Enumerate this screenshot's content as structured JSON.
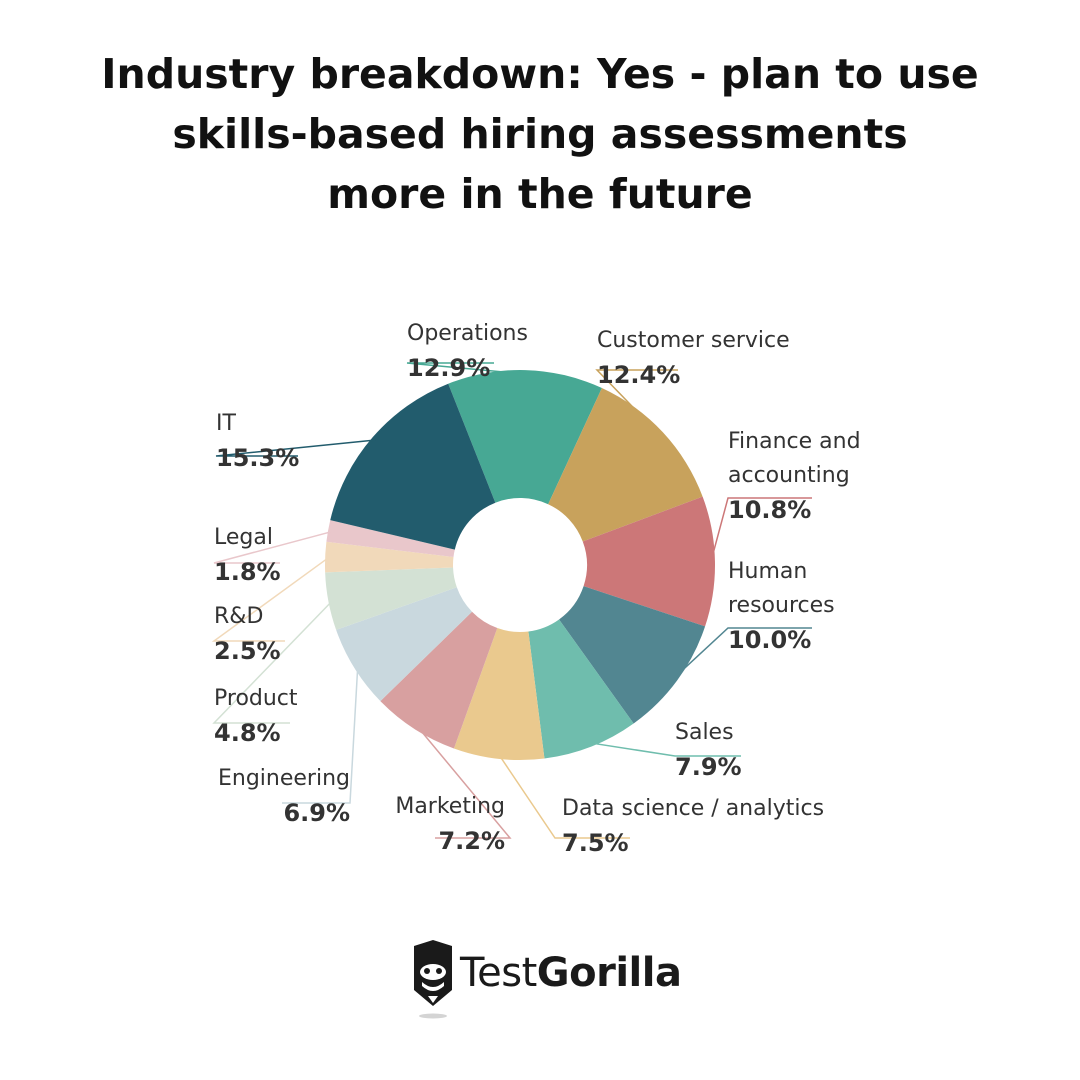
{
  "title_lines": [
    "Industry breakdown: Yes - plan to use",
    "skills-based hiring assessments",
    "more in the future"
  ],
  "chart_data": {
    "type": "pie",
    "variant": "donut",
    "title": "Industry breakdown: Yes - plan to use skills-based hiring assessments more in the future",
    "unit": "%",
    "slices": [
      {
        "label": "Operations",
        "value": 12.9,
        "display": "12.9%",
        "color": "#47A894"
      },
      {
        "label": "Customer service",
        "value": 12.4,
        "display": "12.4%",
        "color": "#C8A25C"
      },
      {
        "label": "Finance and accounting",
        "label_lines": [
          "Finance and",
          "accounting"
        ],
        "value": 10.8,
        "display": "10.8%",
        "color": "#CC7778"
      },
      {
        "label": "Human resources",
        "label_lines": [
          "Human",
          "resources"
        ],
        "value": 10.0,
        "display": "10.0%",
        "color": "#528691"
      },
      {
        "label": "Sales",
        "value": 7.9,
        "display": "7.9%",
        "color": "#6FBDAD"
      },
      {
        "label": "Data science / analytics",
        "value": 7.5,
        "display": "7.5%",
        "color": "#EAC98E"
      },
      {
        "label": "Marketing",
        "value": 7.2,
        "display": "7.2%",
        "color": "#D8A0A0"
      },
      {
        "label": "Engineering",
        "value": 6.9,
        "display": "6.9%",
        "color": "#C9D8DE"
      },
      {
        "label": "Product",
        "value": 4.8,
        "display": "4.8%",
        "color": "#D3E1D4"
      },
      {
        "label": "R&D",
        "value": 2.5,
        "display": "2.5%",
        "color": "#F1D9BA"
      },
      {
        "label": "Legal",
        "value": 1.8,
        "display": "1.8%",
        "color": "#E9C7CB"
      },
      {
        "label": "IT",
        "value": 15.3,
        "display": "15.3%",
        "color": "#225C6D"
      }
    ]
  },
  "logo": {
    "brand_regular": "Test",
    "brand_bold": "Gorilla",
    "icon": "gorilla-pencil-icon"
  }
}
